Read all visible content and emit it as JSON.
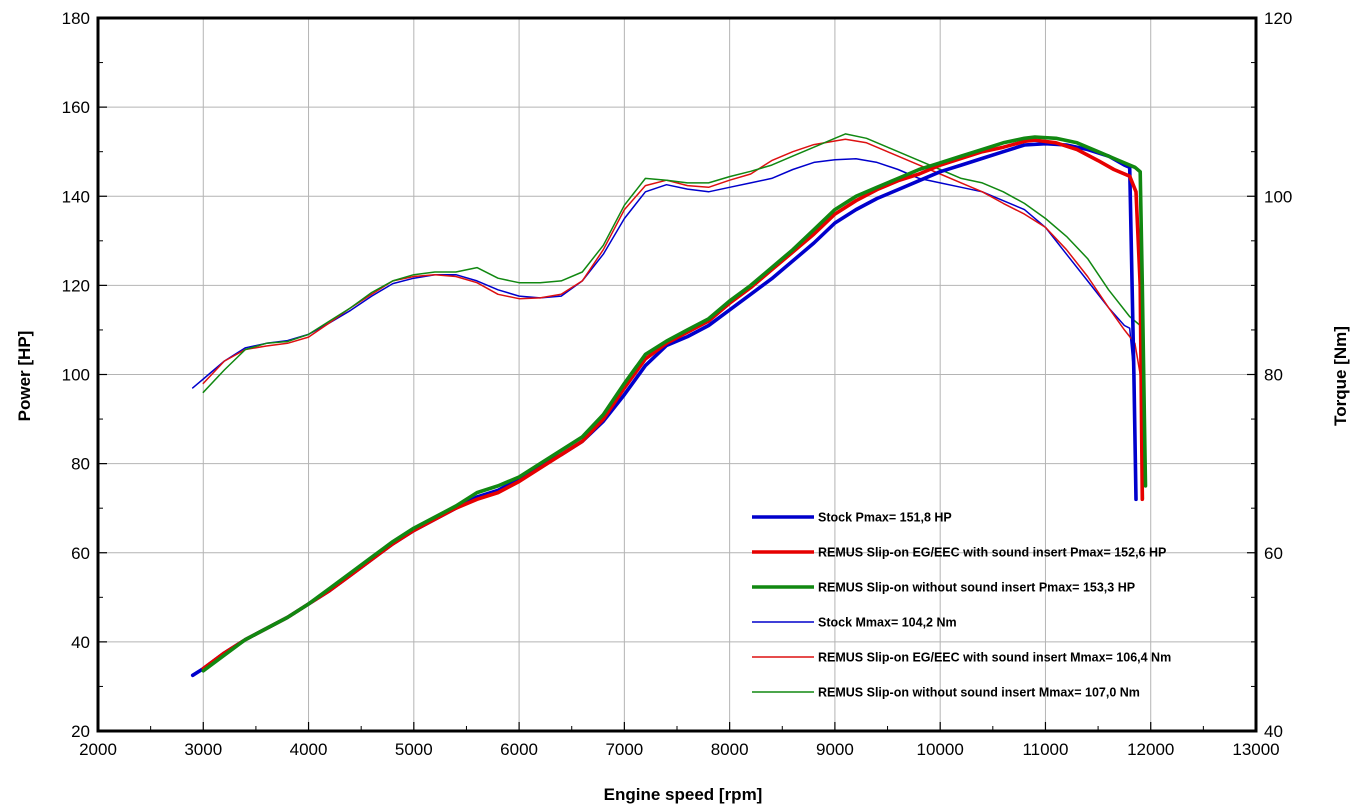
{
  "chart_data": {
    "type": "line",
    "title": "",
    "xlabel": "Engine speed [rpm]",
    "ylabel": "Power [HP]",
    "y2label": "Torque [Nm]",
    "xlim": [
      2000,
      13000
    ],
    "ylim": [
      20,
      180
    ],
    "y2lim": [
      40,
      120
    ],
    "x_ticks": [
      "2000",
      "3000",
      "4000",
      "5000",
      "6000",
      "7000",
      "8000",
      "9000",
      "10000",
      "11000",
      "12000",
      "13000"
    ],
    "y_ticks": [
      "20",
      "40",
      "60",
      "80",
      "100",
      "120",
      "140",
      "160",
      "180"
    ],
    "y2_ticks": [
      "40",
      "60",
      "80",
      "100",
      "120"
    ],
    "grid": true,
    "legend_position": "bottom-right",
    "series": [
      {
        "name": "Stock Pmax= 151,8 HP",
        "axis": "left",
        "color": "#0000cc",
        "width": "thick",
        "points": [
          [
            2900,
            32.5
          ],
          [
            3000,
            34
          ],
          [
            3200,
            37.5
          ],
          [
            3400,
            40.5
          ],
          [
            3600,
            43
          ],
          [
            3800,
            45.5
          ],
          [
            4000,
            48.5
          ],
          [
            4200,
            51.5
          ],
          [
            4400,
            55
          ],
          [
            4600,
            58.5
          ],
          [
            4800,
            62
          ],
          [
            5000,
            65
          ],
          [
            5200,
            67.5
          ],
          [
            5400,
            70
          ],
          [
            5600,
            72.5
          ],
          [
            5800,
            74
          ],
          [
            6000,
            76.5
          ],
          [
            6200,
            79.5
          ],
          [
            6400,
            82
          ],
          [
            6600,
            85
          ],
          [
            6800,
            89.5
          ],
          [
            7000,
            95.5
          ],
          [
            7200,
            102
          ],
          [
            7400,
            106.5
          ],
          [
            7600,
            108.5
          ],
          [
            7800,
            111
          ],
          [
            8000,
            114.5
          ],
          [
            8200,
            118
          ],
          [
            8400,
            121.5
          ],
          [
            8600,
            125.5
          ],
          [
            8800,
            129.5
          ],
          [
            9000,
            134
          ],
          [
            9200,
            137
          ],
          [
            9400,
            139.5
          ],
          [
            9600,
            141.5
          ],
          [
            9800,
            143.5
          ],
          [
            10000,
            145.5
          ],
          [
            10200,
            147
          ],
          [
            10400,
            148.5
          ],
          [
            10600,
            150
          ],
          [
            10800,
            151.5
          ],
          [
            11000,
            151.8
          ],
          [
            11200,
            151.5
          ],
          [
            11400,
            150.5
          ],
          [
            11600,
            149
          ],
          [
            11750,
            147
          ],
          [
            11800,
            146.5
          ],
          [
            11840,
            100
          ],
          [
            11860,
            72
          ]
        ]
      },
      {
        "name": "REMUS Slip-on EG/EEC with sound insert Pmax=  152,6 HP",
        "axis": "left",
        "color": "#e60000",
        "width": "thick",
        "points": [
          [
            3000,
            34
          ],
          [
            3200,
            37.5
          ],
          [
            3400,
            40.5
          ],
          [
            3600,
            43
          ],
          [
            3800,
            45.5
          ],
          [
            4000,
            48.5
          ],
          [
            4200,
            51.5
          ],
          [
            4400,
            55
          ],
          [
            4600,
            58.5
          ],
          [
            4800,
            62
          ],
          [
            5000,
            65
          ],
          [
            5200,
            67.5
          ],
          [
            5400,
            70
          ],
          [
            5600,
            72
          ],
          [
            5800,
            73.5
          ],
          [
            6000,
            76
          ],
          [
            6200,
            79
          ],
          [
            6400,
            82
          ],
          [
            6600,
            85
          ],
          [
            6800,
            90
          ],
          [
            7000,
            97
          ],
          [
            7200,
            103.5
          ],
          [
            7400,
            107
          ],
          [
            7600,
            109.5
          ],
          [
            7800,
            112
          ],
          [
            8000,
            116
          ],
          [
            8200,
            119.5
          ],
          [
            8400,
            123.5
          ],
          [
            8600,
            127.5
          ],
          [
            8800,
            131.5
          ],
          [
            9000,
            136
          ],
          [
            9200,
            139
          ],
          [
            9400,
            141.5
          ],
          [
            9600,
            143.5
          ],
          [
            9800,
            145
          ],
          [
            10000,
            147
          ],
          [
            10200,
            148.5
          ],
          [
            10400,
            150
          ],
          [
            10600,
            151
          ],
          [
            10800,
            152.3
          ],
          [
            10900,
            152.6
          ],
          [
            11100,
            152
          ],
          [
            11300,
            150.5
          ],
          [
            11500,
            148
          ],
          [
            11650,
            146
          ],
          [
            11800,
            144.5
          ],
          [
            11860,
            141
          ],
          [
            11900,
            120
          ],
          [
            11920,
            72
          ]
        ]
      },
      {
        "name": "REMUS Slip-on without sound insert Pmax= 153,3 HP",
        "axis": "left",
        "color": "#118811",
        "width": "thick",
        "points": [
          [
            3000,
            33.5
          ],
          [
            3200,
            37
          ],
          [
            3400,
            40.5
          ],
          [
            3600,
            43
          ],
          [
            3800,
            45.5
          ],
          [
            4000,
            48.5
          ],
          [
            4200,
            52
          ],
          [
            4400,
            55.5
          ],
          [
            4600,
            59
          ],
          [
            4800,
            62.5
          ],
          [
            5000,
            65.5
          ],
          [
            5200,
            68
          ],
          [
            5400,
            70.5
          ],
          [
            5600,
            73.5
          ],
          [
            5800,
            75
          ],
          [
            6000,
            77
          ],
          [
            6200,
            80
          ],
          [
            6400,
            83
          ],
          [
            6600,
            86
          ],
          [
            6800,
            91
          ],
          [
            7000,
            98
          ],
          [
            7200,
            104.5
          ],
          [
            7400,
            107.5
          ],
          [
            7600,
            110
          ],
          [
            7800,
            112.5
          ],
          [
            8000,
            116.5
          ],
          [
            8200,
            120
          ],
          [
            8400,
            124
          ],
          [
            8600,
            128
          ],
          [
            8800,
            132.5
          ],
          [
            9000,
            137
          ],
          [
            9200,
            140
          ],
          [
            9400,
            142
          ],
          [
            9600,
            144
          ],
          [
            9800,
            146
          ],
          [
            10000,
            147.5
          ],
          [
            10200,
            149
          ],
          [
            10400,
            150.5
          ],
          [
            10600,
            152
          ],
          [
            10800,
            153
          ],
          [
            10900,
            153.3
          ],
          [
            11100,
            153
          ],
          [
            11300,
            152
          ],
          [
            11500,
            150
          ],
          [
            11700,
            148
          ],
          [
            11850,
            146.5
          ],
          [
            11900,
            145.5
          ],
          [
            11920,
            120
          ],
          [
            11940,
            90
          ],
          [
            11950,
            75
          ]
        ]
      },
      {
        "name": "Stock Mmax= 104,2 Nm",
        "axis": "right",
        "color": "#0000cc",
        "width": "thin",
        "points": [
          [
            2900,
            78.5
          ],
          [
            3000,
            79.5
          ],
          [
            3200,
            81.5
          ],
          [
            3400,
            83
          ],
          [
            3600,
            83.5
          ],
          [
            3800,
            83.8
          ],
          [
            4000,
            84.5
          ],
          [
            4200,
            85.8
          ],
          [
            4400,
            87.2
          ],
          [
            4600,
            88.8
          ],
          [
            4800,
            90.2
          ],
          [
            5000,
            90.8
          ],
          [
            5200,
            91.2
          ],
          [
            5400,
            91.2
          ],
          [
            5600,
            90.5
          ],
          [
            5800,
            89.5
          ],
          [
            6000,
            88.8
          ],
          [
            6200,
            88.6
          ],
          [
            6400,
            88.8
          ],
          [
            6600,
            90.5
          ],
          [
            6800,
            93.5
          ],
          [
            7000,
            97.5
          ],
          [
            7200,
            100.5
          ],
          [
            7400,
            101.3
          ],
          [
            7600,
            100.8
          ],
          [
            7800,
            100.5
          ],
          [
            8000,
            101
          ],
          [
            8200,
            101.5
          ],
          [
            8400,
            102
          ],
          [
            8600,
            103
          ],
          [
            8800,
            103.8
          ],
          [
            9000,
            104.1
          ],
          [
            9200,
            104.2
          ],
          [
            9400,
            103.8
          ],
          [
            9600,
            103
          ],
          [
            9800,
            102
          ],
          [
            10000,
            101.5
          ],
          [
            10200,
            101
          ],
          [
            10400,
            100.5
          ],
          [
            10600,
            99.5
          ],
          [
            10800,
            98.5
          ],
          [
            11000,
            96.5
          ],
          [
            11200,
            93.5
          ],
          [
            11400,
            90.5
          ],
          [
            11600,
            87.5
          ],
          [
            11750,
            85.5
          ],
          [
            11800,
            85.2
          ],
          [
            11840,
            80
          ],
          [
            11860,
            66
          ]
        ]
      },
      {
        "name": "REMUS Slip-on EG/EEC with sound insert Mmax= 106,4 Nm",
        "axis": "right",
        "color": "#dd1111",
        "width": "thin",
        "points": [
          [
            3000,
            79
          ],
          [
            3200,
            81.5
          ],
          [
            3400,
            82.8
          ],
          [
            3600,
            83.2
          ],
          [
            3800,
            83.5
          ],
          [
            4000,
            84.2
          ],
          [
            4200,
            85.8
          ],
          [
            4400,
            87.5
          ],
          [
            4600,
            89
          ],
          [
            4800,
            90.5
          ],
          [
            5000,
            91
          ],
          [
            5200,
            91.2
          ],
          [
            5400,
            91
          ],
          [
            5600,
            90.3
          ],
          [
            5800,
            89
          ],
          [
            6000,
            88.5
          ],
          [
            6200,
            88.6
          ],
          [
            6400,
            89
          ],
          [
            6600,
            90.5
          ],
          [
            6800,
            94
          ],
          [
            7000,
            98.5
          ],
          [
            7200,
            101.2
          ],
          [
            7400,
            101.8
          ],
          [
            7600,
            101.2
          ],
          [
            7800,
            101
          ],
          [
            8000,
            101.8
          ],
          [
            8200,
            102.5
          ],
          [
            8400,
            104
          ],
          [
            8600,
            105
          ],
          [
            8800,
            105.8
          ],
          [
            9000,
            106.2
          ],
          [
            9100,
            106.4
          ],
          [
            9300,
            106
          ],
          [
            9500,
            105
          ],
          [
            9800,
            103.5
          ],
          [
            10000,
            102.5
          ],
          [
            10200,
            101.5
          ],
          [
            10400,
            100.5
          ],
          [
            10600,
            99.2
          ],
          [
            10800,
            98
          ],
          [
            11000,
            96.5
          ],
          [
            11200,
            94
          ],
          [
            11400,
            91
          ],
          [
            11600,
            87.5
          ],
          [
            11750,
            85
          ],
          [
            11850,
            83.5
          ],
          [
            11900,
            80
          ],
          [
            11920,
            66
          ]
        ]
      },
      {
        "name": "REMUS Slip-on without sound insert Mmax= 107,0 Nm",
        "axis": "right",
        "color": "#118811",
        "width": "thin",
        "points": [
          [
            3000,
            78
          ],
          [
            3200,
            80.5
          ],
          [
            3400,
            82.8
          ],
          [
            3600,
            83.5
          ],
          [
            3800,
            83.7
          ],
          [
            4000,
            84.5
          ],
          [
            4200,
            86
          ],
          [
            4400,
            87.5
          ],
          [
            4600,
            89.2
          ],
          [
            4800,
            90.5
          ],
          [
            5000,
            91.2
          ],
          [
            5200,
            91.5
          ],
          [
            5400,
            91.5
          ],
          [
            5600,
            92
          ],
          [
            5800,
            90.8
          ],
          [
            6000,
            90.3
          ],
          [
            6200,
            90.3
          ],
          [
            6400,
            90.5
          ],
          [
            6600,
            91.5
          ],
          [
            6800,
            94.5
          ],
          [
            7000,
            99
          ],
          [
            7200,
            102
          ],
          [
            7400,
            101.8
          ],
          [
            7600,
            101.5
          ],
          [
            7800,
            101.5
          ],
          [
            8000,
            102.2
          ],
          [
            8200,
            102.8
          ],
          [
            8400,
            103.5
          ],
          [
            8600,
            104.5
          ],
          [
            8800,
            105.5
          ],
          [
            9000,
            106.5
          ],
          [
            9100,
            107
          ],
          [
            9300,
            106.5
          ],
          [
            9500,
            105.5
          ],
          [
            9800,
            104
          ],
          [
            10000,
            103
          ],
          [
            10200,
            102
          ],
          [
            10400,
            101.5
          ],
          [
            10600,
            100.5
          ],
          [
            10800,
            99.2
          ],
          [
            11000,
            97.5
          ],
          [
            11200,
            95.5
          ],
          [
            11400,
            93
          ],
          [
            11600,
            89.5
          ],
          [
            11800,
            86.5
          ],
          [
            11900,
            85.5
          ],
          [
            11920,
            80
          ],
          [
            11930,
            66
          ]
        ]
      }
    ]
  }
}
